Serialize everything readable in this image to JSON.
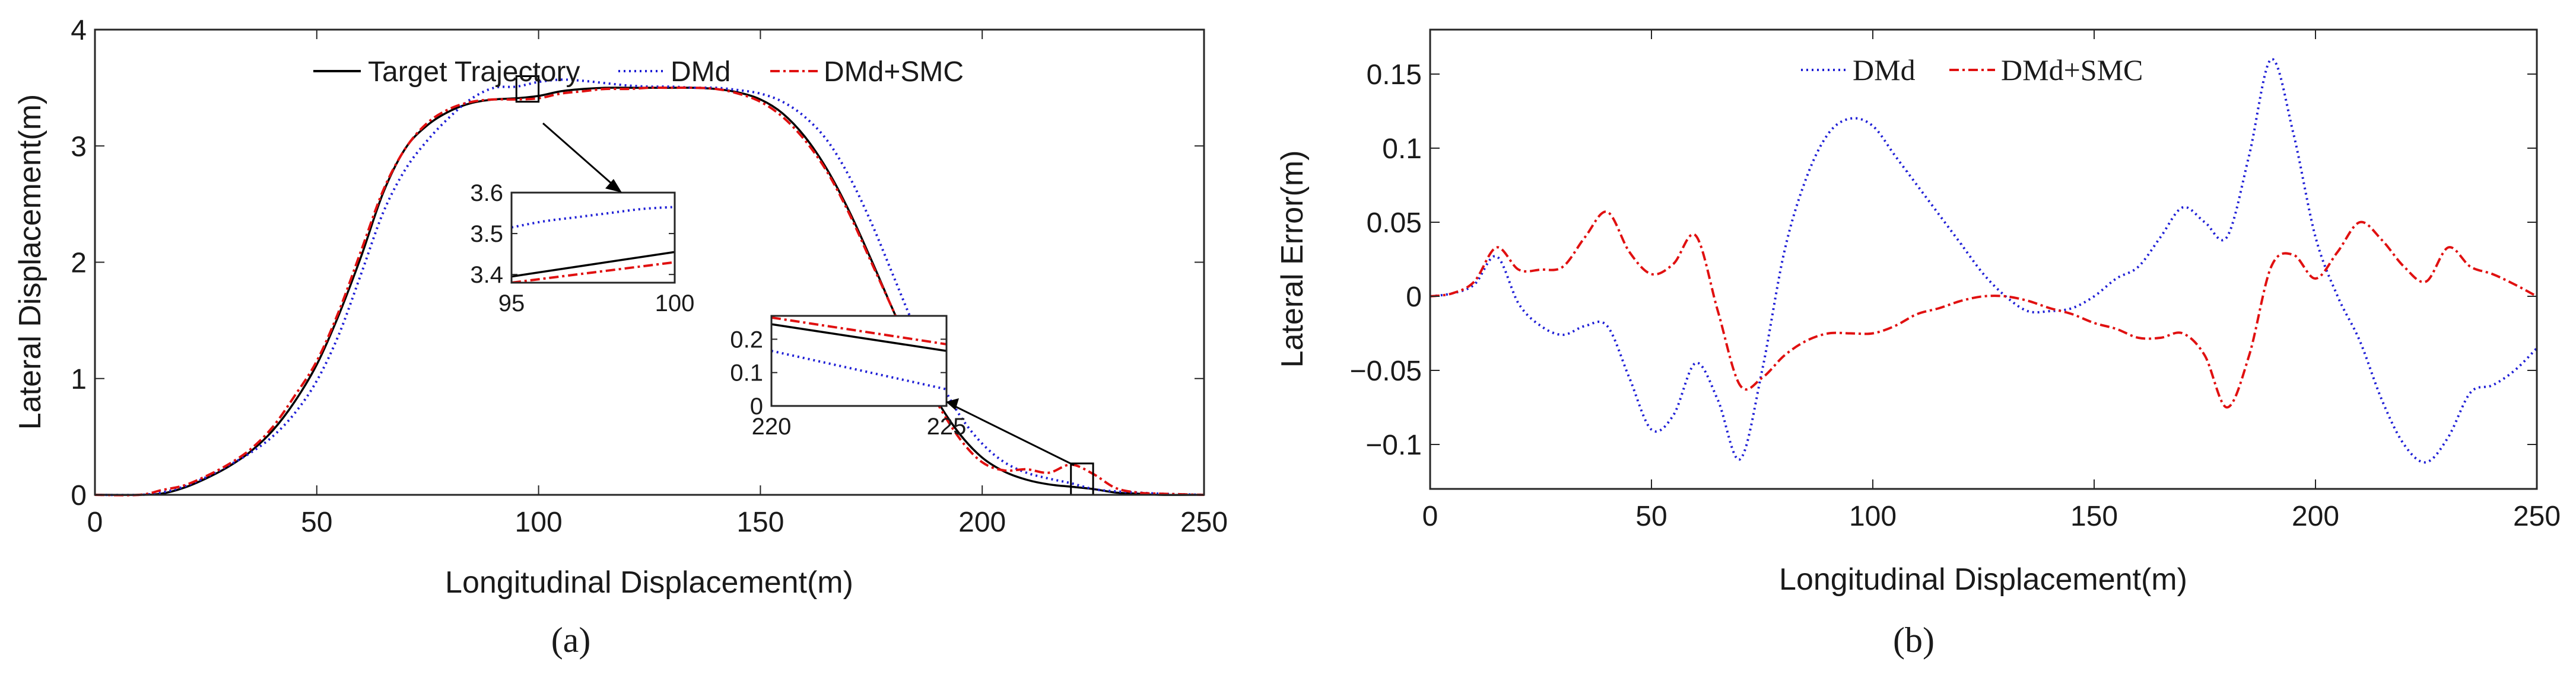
{
  "colors": {
    "target": "#000000",
    "dmd": "#1f1fd6",
    "smc": "#e01010",
    "axis": "#262626"
  },
  "panels": {
    "a": "(a)",
    "b": "(b)"
  },
  "chart_data": [
    {
      "id": "a",
      "type": "line",
      "xlabel": "Longitudinal Displacement(m)",
      "ylabel": "Lateral Displacement(m)",
      "xlim": [
        0,
        250
      ],
      "ylim": [
        0,
        4
      ],
      "xticks": [
        0,
        50,
        100,
        150,
        200,
        250
      ],
      "yticks": [
        0,
        1,
        2,
        3,
        4
      ],
      "legend": [
        "Target Trajectory",
        "DMd",
        "DMd+SMC"
      ],
      "series": [
        {
          "name": "Target Trajectory",
          "x": [
            0,
            10,
            15,
            20,
            25,
            30,
            35,
            40,
            45,
            50,
            55,
            60,
            65,
            70,
            75,
            80,
            85,
            90,
            95,
            100,
            105,
            110,
            115,
            120,
            125,
            130,
            135,
            140,
            145,
            150,
            155,
            160,
            165,
            170,
            175,
            180,
            185,
            190,
            195,
            200,
            205,
            210,
            215,
            220,
            225,
            230,
            235,
            240,
            250
          ],
          "y": [
            0,
            0,
            0.01,
            0.06,
            0.14,
            0.24,
            0.37,
            0.55,
            0.8,
            1.12,
            1.55,
            2.05,
            2.6,
            2.98,
            3.18,
            3.3,
            3.37,
            3.4,
            3.41,
            3.43,
            3.47,
            3.49,
            3.5,
            3.5,
            3.5,
            3.5,
            3.5,
            3.49,
            3.46,
            3.4,
            3.28,
            3.08,
            2.8,
            2.44,
            2.02,
            1.58,
            1.16,
            0.8,
            0.52,
            0.32,
            0.2,
            0.13,
            0.09,
            0.07,
            0.05,
            0.02,
            0.01,
            0,
            0
          ]
        },
        {
          "name": "DMd",
          "x": [
            0,
            10,
            15,
            20,
            25,
            30,
            35,
            40,
            45,
            50,
            55,
            60,
            65,
            70,
            75,
            80,
            85,
            90,
            95,
            100,
            105,
            110,
            115,
            120,
            125,
            130,
            135,
            140,
            145,
            150,
            155,
            160,
            165,
            170,
            175,
            180,
            185,
            190,
            195,
            200,
            205,
            210,
            215,
            220,
            225,
            230,
            235,
            240,
            250
          ],
          "y": [
            0,
            0,
            0.02,
            0.07,
            0.15,
            0.25,
            0.36,
            0.5,
            0.7,
            0.98,
            1.38,
            1.9,
            2.43,
            2.8,
            3.05,
            3.25,
            3.41,
            3.5,
            3.51,
            3.55,
            3.57,
            3.56,
            3.54,
            3.52,
            3.51,
            3.51,
            3.5,
            3.5,
            3.48,
            3.45,
            3.38,
            3.25,
            3.05,
            2.74,
            2.34,
            1.88,
            1.42,
            1.02,
            0.68,
            0.44,
            0.28,
            0.19,
            0.14,
            0.1,
            0.05,
            0.03,
            0.02,
            0.01,
            0
          ]
        },
        {
          "name": "DMd+SMC",
          "x": [
            0,
            10,
            15,
            20,
            25,
            30,
            35,
            40,
            45,
            50,
            55,
            60,
            65,
            70,
            75,
            80,
            85,
            90,
            95,
            100,
            105,
            110,
            115,
            120,
            125,
            130,
            135,
            140,
            145,
            150,
            155,
            160,
            165,
            170,
            175,
            180,
            185,
            190,
            195,
            200,
            205,
            210,
            215,
            220,
            225,
            230,
            235,
            240,
            250
          ],
          "y": [
            0,
            0,
            0.04,
            0.08,
            0.16,
            0.26,
            0.39,
            0.58,
            0.85,
            1.15,
            1.58,
            2.1,
            2.62,
            2.98,
            3.2,
            3.32,
            3.38,
            3.4,
            3.4,
            3.41,
            3.45,
            3.47,
            3.49,
            3.49,
            3.5,
            3.5,
            3.5,
            3.49,
            3.45,
            3.38,
            3.25,
            3.05,
            2.78,
            2.42,
            2.0,
            1.58,
            1.15,
            0.78,
            0.48,
            0.28,
            0.21,
            0.22,
            0.19,
            0.26,
            0.18,
            0.06,
            0.02,
            0.01,
            0
          ]
        }
      ],
      "insets": [
        {
          "xlim": [
            95,
            100
          ],
          "ylim": [
            3.38,
            3.6
          ],
          "xticks": [
            95,
            100
          ],
          "yticks": [
            3.4,
            3.5,
            3.6
          ],
          "series": [
            {
              "name": "Target Trajectory",
              "x": [
                95,
                100
              ],
              "y": [
                3.395,
                3.455
              ]
            },
            {
              "name": "DMd",
              "x": [
                95,
                96,
                97,
                98,
                99,
                100
              ],
              "y": [
                3.515,
                3.53,
                3.54,
                3.55,
                3.56,
                3.565
              ]
            },
            {
              "name": "DMd+SMC",
              "x": [
                95,
                100
              ],
              "y": [
                3.38,
                3.43
              ]
            }
          ]
        },
        {
          "xlim": [
            220,
            225
          ],
          "ylim": [
            0,
            0.27
          ],
          "xticks": [
            220,
            225
          ],
          "yticks": [
            0,
            0.1,
            0.2
          ],
          "series": [
            {
              "name": "Target Trajectory",
              "x": [
                220,
                225
              ],
              "y": [
                0.245,
                0.165
              ]
            },
            {
              "name": "DMd",
              "x": [
                220,
                225
              ],
              "y": [
                0.165,
                0.05
              ]
            },
            {
              "name": "DMd+SMC",
              "x": [
                220,
                225
              ],
              "y": [
                0.265,
                0.185
              ]
            }
          ]
        }
      ]
    },
    {
      "id": "b",
      "type": "line",
      "xlabel": "Longitudinal Displacement(m)",
      "ylabel": "Lateral Error(m)",
      "xlim": [
        0,
        250
      ],
      "ylim": [
        -0.13,
        0.18
      ],
      "xticks": [
        0,
        50,
        100,
        150,
        200,
        250
      ],
      "yticks": [
        -0.1,
        -0.05,
        0,
        0.05,
        0.1,
        0.15
      ],
      "yticklabels": [
        "−0.1",
        "−0.05",
        "0",
        "0.05",
        "0.1",
        "0.15"
      ],
      "legend": [
        "DMd",
        "DMd+SMC"
      ],
      "series": [
        {
          "name": "DMd",
          "x": [
            0,
            5,
            10,
            15,
            20,
            25,
            30,
            35,
            40,
            45,
            50,
            55,
            60,
            65,
            70,
            75,
            80,
            85,
            90,
            95,
            100,
            105,
            110,
            115,
            120,
            125,
            130,
            135,
            140,
            145,
            150,
            155,
            160,
            165,
            170,
            175,
            180,
            185,
            190,
            195,
            200,
            205,
            210,
            215,
            220,
            225,
            230,
            235,
            240,
            245,
            250
          ],
          "y": [
            0,
            0.002,
            0.008,
            0.027,
            -0.005,
            -0.02,
            -0.026,
            -0.02,
            -0.02,
            -0.055,
            -0.09,
            -0.08,
            -0.045,
            -0.07,
            -0.11,
            -0.05,
            0.03,
            0.08,
            0.11,
            0.12,
            0.115,
            0.095,
            0.075,
            0.055,
            0.035,
            0.015,
            0.0,
            -0.01,
            -0.01,
            -0.008,
            0.0,
            0.012,
            0.02,
            0.04,
            0.06,
            0.05,
            0.04,
            0.095,
            0.16,
            0.11,
            0.04,
            0.0,
            -0.03,
            -0.07,
            -0.1,
            -0.112,
            -0.095,
            -0.065,
            -0.06,
            -0.05,
            -0.035
          ]
        },
        {
          "name": "DMd+SMC",
          "x": [
            0,
            5,
            10,
            15,
            20,
            25,
            30,
            35,
            40,
            45,
            50,
            55,
            60,
            65,
            70,
            75,
            80,
            85,
            90,
            95,
            100,
            105,
            110,
            115,
            120,
            125,
            130,
            135,
            140,
            145,
            150,
            155,
            160,
            165,
            170,
            175,
            180,
            185,
            190,
            195,
            200,
            205,
            210,
            215,
            220,
            225,
            230,
            235,
            240,
            245,
            250
          ],
          "y": [
            0,
            0.002,
            0.01,
            0.033,
            0.018,
            0.018,
            0.02,
            0.04,
            0.057,
            0.03,
            0.015,
            0.022,
            0.041,
            -0.01,
            -0.06,
            -0.055,
            -0.04,
            -0.03,
            -0.025,
            -0.025,
            -0.025,
            -0.02,
            -0.012,
            -0.008,
            -0.003,
            0.0,
            0.0,
            -0.003,
            -0.008,
            -0.012,
            -0.018,
            -0.022,
            -0.028,
            -0.028,
            -0.025,
            -0.04,
            -0.075,
            -0.04,
            0.02,
            0.028,
            0.012,
            0.03,
            0.05,
            0.038,
            0.02,
            0.01,
            0.033,
            0.02,
            0.015,
            0.008,
            0.0
          ]
        }
      ]
    }
  ]
}
